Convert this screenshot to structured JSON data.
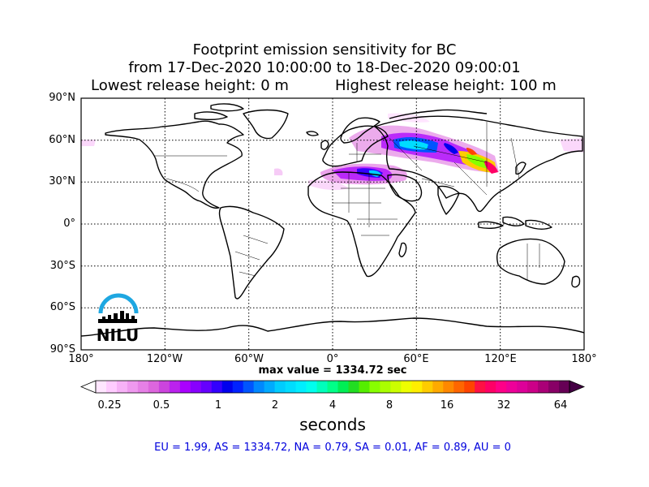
{
  "title": {
    "line1": "Footprint emission sensitivity for BC",
    "line2": "from 17-Dec-2020 10:00:00 to 18-Dec-2020 09:00:01",
    "lowest": "Lowest release height: 0 m",
    "highest": "Highest release height: 100 m"
  },
  "axes": {
    "lat_labels": [
      "90°N",
      "60°N",
      "30°N",
      "0°",
      "30°S",
      "60°S",
      "90°S"
    ],
    "lon_labels": [
      "180°",
      "120°W",
      "60°W",
      "0°",
      "60°E",
      "120°E",
      "180°"
    ],
    "lat_values": [
      90,
      60,
      30,
      0,
      -30,
      -60,
      -90
    ],
    "lon_values": [
      -180,
      -120,
      -60,
      0,
      60,
      120,
      180
    ]
  },
  "max_value": "max value = 1334.72 sec",
  "colorbar": {
    "ticks": [
      "0.25",
      "0.5",
      "1",
      "2",
      "4",
      "8",
      "16",
      "32",
      "64"
    ],
    "units": "seconds",
    "colors": [
      "#ffe6ff",
      "#ffccff",
      "#f7b2f7",
      "#ef99ef",
      "#e680e6",
      "#dd66dd",
      "#cc44dd",
      "#bb22ee",
      "#aa00ff",
      "#8800ff",
      "#6600ff",
      "#3300ff",
      "#0000ee",
      "#0022ff",
      "#0055ff",
      "#0088ff",
      "#00aaff",
      "#00ccff",
      "#00ddff",
      "#00eeff",
      "#00ffee",
      "#00ffbb",
      "#00ff88",
      "#00ee55",
      "#22dd22",
      "#55ee00",
      "#88ff00",
      "#aaff00",
      "#ccff00",
      "#eeff00",
      "#ffee00",
      "#ffcc00",
      "#ffaa00",
      "#ff8800",
      "#ff6600",
      "#ff4400",
      "#ff1144",
      "#ff0066",
      "#ff0088",
      "#ee0099",
      "#dd0099",
      "#cc0088",
      "#aa0077",
      "#880066",
      "#660055"
    ]
  },
  "regions": "EU = 1.99,  AS = 1334.72,  NA = 0.79,  SA = 0.01,  AF = 0.89,  AU = 0",
  "logo": {
    "text": "NILU",
    "arc_color": "#1ea7e1"
  }
}
